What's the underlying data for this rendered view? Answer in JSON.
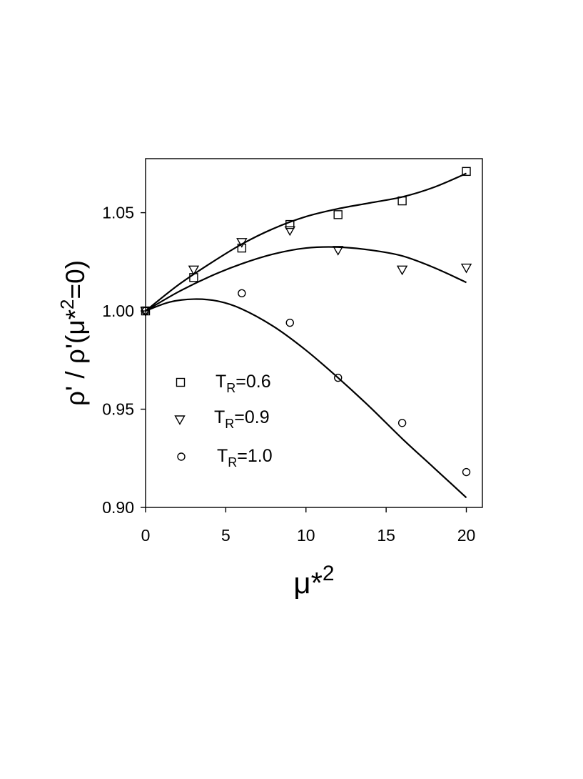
{
  "chart_data": {
    "type": "scatter",
    "title": "",
    "xlabel": "μ*2",
    "ylabel": "ρ' / ρ'(μ*2=0)",
    "xlim": [
      0,
      21
    ],
    "ylim": [
      0.9,
      1.0775
    ],
    "x_ticks": [
      0,
      5,
      10,
      15,
      20
    ],
    "y_ticks": [
      0.9,
      0.95,
      1.0,
      1.05
    ],
    "x_tick_labels": [
      "0",
      "5",
      "10",
      "15",
      "20"
    ],
    "y_tick_labels": [
      "0.90",
      "0.95",
      "1.00",
      "1.05"
    ],
    "grid": false,
    "legend_position": "lower-left",
    "series": [
      {
        "name": "TR=0.6",
        "name_main": "T",
        "name_sub": "R",
        "name_rest": "=0.6",
        "marker": "square",
        "x": [
          0,
          3,
          6,
          9,
          12,
          16,
          20
        ],
        "y": [
          1.0,
          1.017,
          1.032,
          1.044,
          1.049,
          1.056,
          1.071
        ],
        "fit_x": [
          0,
          2,
          4,
          6,
          8,
          10,
          12,
          14,
          16,
          18,
          20
        ],
        "fit_y": [
          1.0,
          1.013,
          1.024,
          1.034,
          1.042,
          1.048,
          1.052,
          1.055,
          1.058,
          1.063,
          1.07
        ]
      },
      {
        "name": "TR=0.9",
        "name_main": "T",
        "name_sub": "R",
        "name_rest": "=0.9",
        "marker": "triangle-down",
        "x": [
          0,
          3,
          6,
          9,
          12,
          16,
          20
        ],
        "y": [
          1.0,
          1.021,
          1.035,
          1.041,
          1.031,
          1.021,
          1.022
        ],
        "fit_x": [
          0,
          2,
          4,
          6,
          8,
          10,
          12,
          14,
          16,
          18,
          20
        ],
        "fit_y": [
          1.0,
          1.0095,
          1.0175,
          1.024,
          1.029,
          1.032,
          1.0325,
          1.031,
          1.028,
          1.022,
          1.0145
        ]
      },
      {
        "name": "TR=1.0",
        "name_main": "T",
        "name_sub": "R",
        "name_rest": "=1.0",
        "marker": "circle",
        "x": [
          0,
          6,
          9,
          12,
          16,
          20
        ],
        "y": [
          1.0,
          1.009,
          0.994,
          0.966,
          0.943,
          0.918
        ],
        "fit_x": [
          0,
          1.5,
          3,
          4.5,
          6,
          8,
          10,
          12,
          14,
          16,
          18,
          20
        ],
        "fit_y": [
          1.0,
          1.0045,
          1.006,
          1.005,
          1.001,
          0.992,
          0.98,
          0.966,
          0.951,
          0.935,
          0.92,
          0.905
        ]
      }
    ]
  }
}
